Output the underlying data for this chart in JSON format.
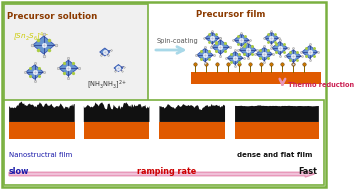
{
  "bg_color": "#ffffff",
  "green_border_color": "#7ab040",
  "top_left_title": "Precursor solution",
  "top_right_title": "Precursor film",
  "spin_coating_label": "Spin-coating",
  "thermo_label": "Thermo reduction",
  "arrow_color_spin": "#a8d8e8",
  "arrow_color_thermo": "#e896b8",
  "formula1": "[Sn$_2$S$_6$]$^{4-}$",
  "formula2": "[NH$_3$NH$_3$]$^{2+}$",
  "bottom_label1": "Nanostructral film",
  "bottom_label2": "dense and flat film",
  "bottom_slow": "slow",
  "bottom_fast": "Fast",
  "bottom_center": "ramping rate",
  "bottom_slow_color": "#1a1aaa",
  "bottom_fast_color": "#111111",
  "bottom_center_color": "#cc0000",
  "bottom_label_color1": "#1a1aaa",
  "bottom_label_color2": "#111111",
  "title_color": "#8B3A00",
  "orange_color": "#e05a00",
  "black_color": "#111111",
  "diamond_color": "#5588cc",
  "diamond_edge": "#2244aa",
  "connector_color": "#cccccc",
  "line_color": "#223388",
  "yellow_formula": "#cccc00",
  "peg_color": "#cc7700",
  "thermo_color": "#cc2255"
}
